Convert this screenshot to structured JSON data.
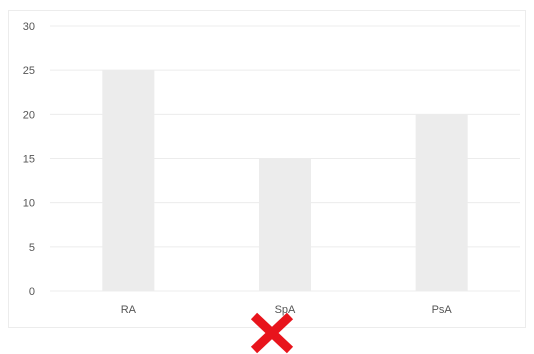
{
  "chart_data": {
    "type": "bar",
    "categories": [
      "RA",
      "SpA",
      "PsA"
    ],
    "values": [
      25,
      15,
      20
    ],
    "title": "",
    "xlabel": "",
    "ylabel": "",
    "ylim": [
      0,
      30
    ],
    "yticks": [
      0,
      5,
      10,
      15,
      20,
      25,
      30
    ],
    "grid": true,
    "legend": "none",
    "colors": {
      "bar": "#ececec",
      "grid": "#ececec",
      "text": "#555555",
      "mark": "#e8141c"
    }
  },
  "overlay": {
    "icon": "red-x-icon"
  }
}
